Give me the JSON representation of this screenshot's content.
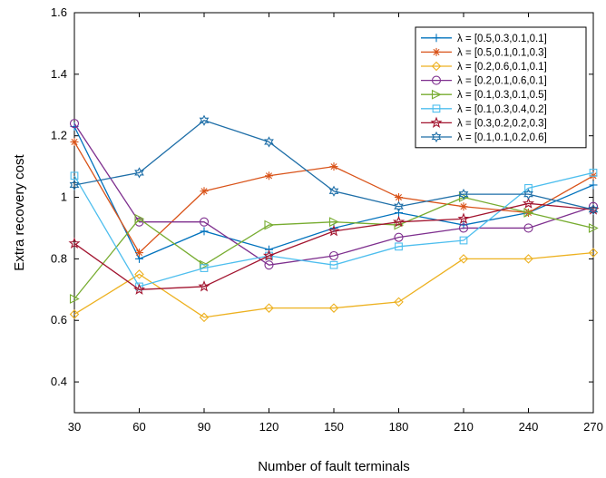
{
  "chart_data": {
    "type": "line",
    "title": "",
    "xlabel": "Number of fault terminals",
    "ylabel": "Extra recovery cost",
    "x": [
      30,
      60,
      90,
      120,
      150,
      180,
      210,
      240,
      270
    ],
    "xlim": [
      30,
      270
    ],
    "ylim": [
      0.3,
      1.6
    ],
    "xticks": [
      "30",
      "60",
      "90",
      "120",
      "150",
      "180",
      "210",
      "240",
      "270"
    ],
    "yticks": [
      "0.4",
      "0.6",
      "0.8",
      "1",
      "1.2",
      "1.4",
      "1.6"
    ],
    "ytick_values": [
      0.4,
      0.6,
      0.8,
      1.0,
      1.2,
      1.4,
      1.6
    ],
    "grid": false,
    "legend_position": "top-right",
    "series": [
      {
        "name": "λ = [0.5,0.3,0.1,0.1]",
        "color": "#0072BD",
        "marker": "plus",
        "values": [
          1.23,
          0.8,
          0.89,
          0.83,
          0.9,
          0.95,
          0.91,
          0.95,
          1.04
        ]
      },
      {
        "name": "λ = [0.5,0.1,0.1,0.3]",
        "color": "#D95319",
        "marker": "asterisk",
        "values": [
          1.18,
          0.82,
          1.02,
          1.07,
          1.1,
          1.0,
          0.97,
          0.95,
          1.07
        ]
      },
      {
        "name": "λ = [0.2,0.6,0.1,0.1]",
        "color": "#EDB120",
        "marker": "diamond",
        "values": [
          0.62,
          0.75,
          0.61,
          0.64,
          0.64,
          0.66,
          0.8,
          0.8,
          0.82
        ]
      },
      {
        "name": "λ = [0.2,0.1,0.6,0.1]",
        "color": "#7E2F8E",
        "marker": "circle",
        "values": [
          1.24,
          0.92,
          0.92,
          0.78,
          0.81,
          0.87,
          0.9,
          0.9,
          0.97
        ]
      },
      {
        "name": "λ = [0.1,0.3,0.1,0.5]",
        "color": "#77AC30",
        "marker": "triangle-right",
        "values": [
          0.67,
          0.93,
          0.78,
          0.91,
          0.92,
          0.91,
          1.0,
          0.95,
          0.9
        ]
      },
      {
        "name": "λ = [0.1,0.3,0.4,0.2]",
        "color": "#4DBEEE",
        "marker": "square",
        "values": [
          1.07,
          0.71,
          0.77,
          0.81,
          0.78,
          0.84,
          0.86,
          1.03,
          1.08
        ]
      },
      {
        "name": "λ = [0.3,0.2,0.2,0.3]",
        "color": "#A2142F",
        "marker": "pentagram",
        "values": [
          0.85,
          0.7,
          0.71,
          0.81,
          0.89,
          0.92,
          0.93,
          0.98,
          0.96
        ]
      },
      {
        "name": "λ = [0.1,0.1,0.2,0.6]",
        "color": "#1F6FA8",
        "marker": "hexagram",
        "values": [
          1.04,
          1.08,
          1.25,
          1.18,
          1.02,
          0.97,
          1.01,
          1.01,
          0.96
        ]
      }
    ]
  }
}
